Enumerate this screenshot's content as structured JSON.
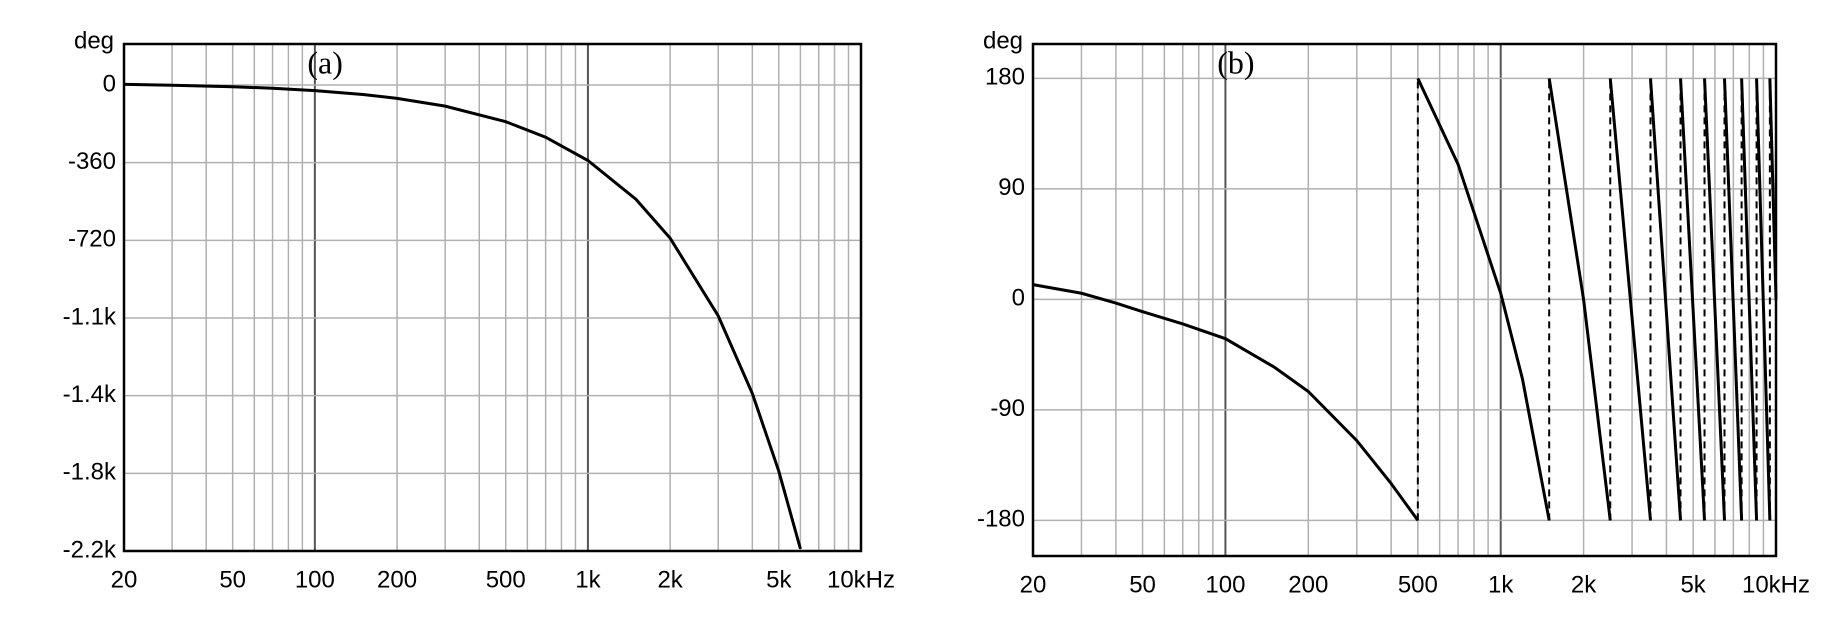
{
  "chart_data": [
    {
      "type": "line",
      "ylabel": "deg",
      "annotation": "(a)",
      "xlog": true,
      "grid": true,
      "xlim": [
        20,
        10000
      ],
      "xticks": [
        20,
        50,
        100,
        200,
        500,
        {
          "value": 1000,
          "label": "1k"
        },
        {
          "value": 2000,
          "label": "2k"
        },
        {
          "value": 5000,
          "label": "5k"
        },
        {
          "value": 10000,
          "label": "10kHz"
        }
      ],
      "xminor": [
        30,
        40,
        60,
        70,
        80,
        90,
        300,
        400,
        600,
        700,
        800,
        900,
        3000,
        4000,
        6000,
        7000,
        8000,
        9000
      ],
      "ylim": [
        -2160,
        190
      ],
      "yticks": [
        0,
        -360,
        -720,
        {
          "value": -1080,
          "label": "-1.1k"
        },
        {
          "value": -1440,
          "label": "-1.4k"
        },
        {
          "value": -1800,
          "label": "-1.8k"
        },
        {
          "value": -2160,
          "label": "-2.2k"
        }
      ],
      "x": [
        20,
        30,
        50,
        70,
        100,
        150,
        200,
        300,
        500,
        700,
        1000,
        1500,
        2000,
        3000,
        4000,
        5000,
        6000
      ],
      "series": [
        {
          "color": "#000000",
          "values": [
            3,
            -1,
            -8,
            -15,
            -26,
            -44,
            -62,
            -98,
            -170,
            -242,
            -350,
            -530,
            -710,
            -1070,
            -1430,
            -1790,
            -2150
          ]
        }
      ]
    },
    {
      "type": "line",
      "ylabel": "deg",
      "annotation": "(b)",
      "xlog": true,
      "grid": true,
      "xlim": [
        20,
        10000
      ],
      "xticks": [
        20,
        50,
        100,
        200,
        500,
        {
          "value": 1000,
          "label": "1k"
        },
        {
          "value": 2000,
          "label": "2k"
        },
        {
          "value": 5000,
          "label": "5k"
        },
        {
          "value": 10000,
          "label": "10kHz"
        }
      ],
      "xminor": [
        30,
        40,
        60,
        70,
        80,
        90,
        300,
        400,
        600,
        700,
        800,
        900,
        3000,
        4000,
        6000,
        7000,
        8000,
        9000
      ],
      "ylim": [
        -209,
        208
      ],
      "yticks": [
        180,
        90,
        0,
        -90,
        -180
      ],
      "x": [
        20,
        30,
        40,
        50,
        70,
        100,
        150,
        200,
        300,
        400,
        500,
        500,
        500,
        700,
        1000,
        1200,
        1500,
        1500,
        1500,
        2000,
        2500,
        2500,
        2500,
        3500,
        3500,
        3500,
        4500,
        4500,
        4500,
        5500,
        5500,
        5500,
        6500,
        6500,
        6500,
        7500,
        7500,
        7500,
        8500,
        8500,
        8500,
        9500,
        9500,
        9500,
        10000
      ],
      "series": [
        {
          "color": "#000000",
          "values": [
            12,
            5,
            -3,
            -10,
            -20,
            -32,
            -55,
            -75,
            -115,
            -150,
            -180,
            null,
            180,
            110,
            5,
            -65,
            -180,
            null,
            180,
            0,
            -180,
            null,
            180,
            -180,
            null,
            180,
            -180,
            null,
            180,
            -180,
            null,
            180,
            -180,
            null,
            180,
            -180,
            null,
            180,
            -180,
            null,
            180,
            -180,
            null,
            180,
            0
          ]
        }
      ]
    }
  ]
}
